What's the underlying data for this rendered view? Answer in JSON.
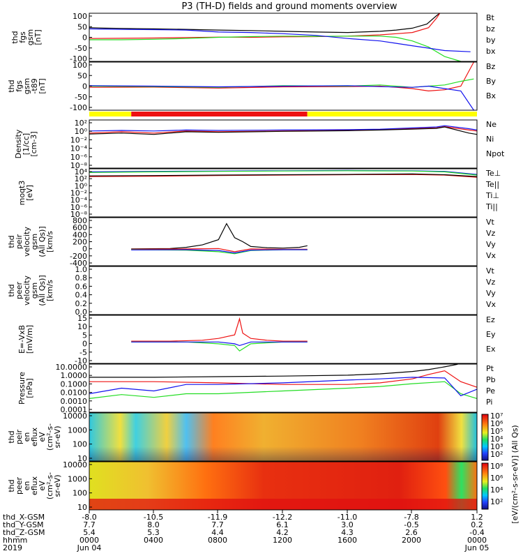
{
  "title": "P3 (TH-D) fields and ground moments overview",
  "colors": {
    "black": "#000000",
    "red": "#ee1111",
    "green": "#22dd22",
    "blue": "#1111ee",
    "yellow": "#ffff00"
  },
  "panels": [
    {
      "id": "p1",
      "label": [
        "thd",
        "fgs",
        "gsm",
        "[nT]"
      ],
      "ticks": [
        "100",
        "50",
        "0",
        "-50",
        "-100"
      ],
      "legend": [
        {
          "text": "Bt",
          "color": "black"
        },
        {
          "text": "bz",
          "color": "red"
        },
        {
          "text": "by",
          "color": "green"
        },
        {
          "text": "bx",
          "color": "blue"
        }
      ]
    },
    {
      "id": "p2",
      "label": [
        "thd",
        "fgs",
        "gsm",
        "-t89",
        "[nT]"
      ],
      "ticks": [
        "100",
        "50",
        "0",
        "-50",
        "-100"
      ],
      "legend": [
        {
          "text": "Bz",
          "color": "red"
        },
        {
          "text": "By",
          "color": "green"
        },
        {
          "text": "Bx",
          "color": "blue"
        }
      ]
    },
    {
      "id": "p3",
      "label": [
        "Density",
        "[1/cc]",
        "[cm-3]"
      ],
      "ticks": [
        "10²",
        "10⁰",
        "10⁻²",
        "10⁻⁴",
        "10⁻⁶",
        "10⁻⁸"
      ],
      "legend": [
        {
          "text": "Ne",
          "color": "red"
        },
        {
          "text": "Ni",
          "color": "black"
        },
        {
          "text": "Npot",
          "color": "blue"
        }
      ]
    },
    {
      "id": "p4",
      "label": [
        "moqt3",
        "[eV]"
      ],
      "ticks": [
        "10⁴",
        "10²",
        "10⁰",
        "10⁻²",
        "10⁻⁴",
        "10⁻⁶",
        "10⁻⁸"
      ],
      "legend": [
        {
          "text": "Te⊥",
          "color": "red"
        },
        {
          "text": "Te||",
          "color": "black"
        },
        {
          "text": "Ti⊥",
          "color": "blue"
        },
        {
          "text": "Ti||",
          "color": "green"
        }
      ]
    },
    {
      "id": "p5",
      "label": [
        "thd",
        "peir",
        "velocity",
        "gsm",
        "(All Qs)]",
        "[km/s"
      ],
      "ticks": [
        "800",
        "600",
        "400",
        "200",
        "0",
        "-200",
        "-400"
      ],
      "legend": [
        {
          "text": "Vt",
          "color": "black"
        },
        {
          "text": "Vz",
          "color": "red"
        },
        {
          "text": "Vy",
          "color": "green"
        },
        {
          "text": "Vx",
          "color": "blue"
        }
      ]
    },
    {
      "id": "p6",
      "label": [
        "thd",
        "peer",
        "velocity",
        "gsm",
        "(All Qs)]",
        "[km/s"
      ],
      "ticks": [
        "1.0",
        "0.8",
        "0.6",
        "0.4",
        "0.2",
        "0.0"
      ],
      "legend": [
        {
          "text": "Vt",
          "color": "black"
        },
        {
          "text": "Vz",
          "color": "red"
        },
        {
          "text": "Vy",
          "color": "green"
        },
        {
          "text": "Vx",
          "color": "blue"
        }
      ]
    },
    {
      "id": "p7",
      "label": [
        "E=-VxB",
        "[mV/m]"
      ],
      "ticks": [
        "15",
        "10",
        "5",
        "0",
        "-5",
        "-10"
      ],
      "legend": [
        {
          "text": "Ez",
          "color": "red"
        },
        {
          "text": "Ey",
          "color": "green"
        },
        {
          "text": "Ex",
          "color": "blue"
        }
      ]
    },
    {
      "id": "p8",
      "label": [
        "Pressure",
        "[nPa]"
      ],
      "ticks": [
        "10.0000",
        "1.0000",
        "0.1000",
        "0.0100",
        "0.0010",
        "0.0001"
      ],
      "legend": [
        {
          "text": "Pt",
          "color": "black"
        },
        {
          "text": "Pb",
          "color": "red"
        },
        {
          "text": "Pe",
          "color": "green"
        },
        {
          "text": "Pi",
          "color": "blue"
        }
      ]
    },
    {
      "id": "p9",
      "label": [
        "thd",
        "peir",
        "en",
        "eflux",
        "eV",
        "(cm²-s-",
        "sr-eV)"
      ],
      "ticks": [
        "10000",
        "1000",
        "100",
        "10"
      ]
    },
    {
      "id": "p10",
      "label": [
        "thd",
        "peer",
        "en",
        "eflux",
        "eV",
        "(cm²-s-",
        "sr-eV)"
      ],
      "ticks": [
        "10000",
        "1000",
        "100",
        "10"
      ]
    }
  ],
  "spectro_colorbar": {
    "label": "[eV/(cm²-s-sr-eV)] (All Qs)",
    "ticks_top": [
      "10⁷",
      "10⁶",
      "10⁵",
      "10⁴",
      "10³",
      "10²"
    ],
    "ticks_bottom": [
      "10⁸",
      "10⁶",
      "10⁴",
      "10²"
    ]
  },
  "chart_data": {
    "type": "line",
    "title": "P3 (TH-D) fields and ground moments overview",
    "x_axis_rows": [
      {
        "label": "thd_X-GSM",
        "values": [
          "-8.0",
          "-10.5",
          "-11.9",
          "-12.2",
          "-11.0",
          "-7.8",
          "1.2"
        ]
      },
      {
        "label": "thd_Y-GSM",
        "values": [
          "7.7",
          "8.0",
          "7.7",
          "6.1",
          "3.0",
          "-0.5",
          "0.2"
        ]
      },
      {
        "label": "thd_Z-GSM",
        "values": [
          "5.4",
          "5.3",
          "4.4",
          "4.2",
          "4.3",
          "2.6",
          "-0.4"
        ]
      },
      {
        "label": "hhmm",
        "values": [
          "0000",
          "0400",
          "0800",
          "1200",
          "1600",
          "2000",
          "0000"
        ]
      },
      {
        "label": "2019",
        "values": [
          "Jun 04",
          "",
          "",
          "",
          "",
          "",
          "Jun 05"
        ]
      }
    ],
    "time_range_hours": [
      0,
      24
    ],
    "series": [
      {
        "panel": "p1",
        "name": "Bt",
        "x": [
          0,
          1,
          2,
          3,
          4,
          6,
          8,
          10,
          12,
          14,
          16,
          18,
          19,
          20,
          20.9,
          21.5,
          21.7
        ],
        "y": [
          40,
          38,
          37,
          36,
          35,
          33,
          30,
          28,
          25,
          22,
          20,
          25,
          30,
          38,
          55,
          90,
          100
        ]
      },
      {
        "panel": "p1",
        "name": "bz",
        "x": [
          0,
          2,
          4,
          6,
          8,
          10,
          12,
          14,
          16,
          18,
          19,
          20,
          21,
          21.5,
          21.7
        ],
        "y": [
          -5,
          -4,
          -3,
          -1,
          1,
          0,
          2,
          3,
          5,
          10,
          15,
          20,
          40,
          80,
          100
        ]
      },
      {
        "panel": "p1",
        "name": "by",
        "x": [
          0,
          2,
          4,
          6,
          8,
          10,
          12,
          14,
          16,
          18,
          19,
          20,
          21,
          22,
          23
        ],
        "y": [
          -10,
          -10,
          -8,
          -5,
          0,
          3,
          5,
          4,
          5,
          5,
          0,
          -15,
          -40,
          -80,
          -100
        ]
      },
      {
        "panel": "p1",
        "name": "bx",
        "x": [
          0,
          2,
          4,
          6,
          8,
          10,
          12,
          14,
          16,
          18,
          19,
          20,
          21,
          22,
          23.6
        ],
        "y": [
          35,
          33,
          32,
          30,
          22,
          20,
          15,
          8,
          -5,
          -15,
          -25,
          -35,
          -45,
          -55,
          -60
        ]
      },
      {
        "panel": "p2",
        "name": "Bz",
        "x": [
          0,
          4,
          8,
          12,
          16,
          18,
          19,
          20,
          21,
          22,
          23,
          23.8
        ],
        "y": [
          -5,
          -4,
          -8,
          -3,
          -2,
          0,
          -5,
          -10,
          -20,
          -15,
          0,
          100
        ]
      },
      {
        "panel": "p2",
        "name": "By",
        "x": [
          0,
          4,
          8,
          12,
          16,
          18,
          20,
          21,
          22,
          23,
          23.8
        ],
        "y": [
          0,
          -2,
          -5,
          2,
          0,
          5,
          -5,
          0,
          5,
          20,
          30
        ]
      },
      {
        "panel": "p2",
        "name": "Bx",
        "x": [
          0,
          4,
          8,
          12,
          16,
          18,
          20,
          21,
          22,
          23,
          23.8
        ],
        "y": [
          2,
          0,
          -3,
          0,
          2,
          -2,
          -5,
          0,
          -10,
          -20,
          -100
        ]
      },
      {
        "panel": "p3",
        "name": "Ne",
        "x": [
          0,
          2,
          4,
          6,
          8,
          12,
          16,
          18,
          20,
          21.5,
          22,
          23.5,
          24
        ],
        "y": [
          0.1,
          0.2,
          0.1,
          0.3,
          0.2,
          0.3,
          0.4,
          0.6,
          1.0,
          1.5,
          3.0,
          0.5,
          0.3
        ]
      },
      {
        "panel": "p3",
        "name": "Ni",
        "x": [
          0,
          2,
          4,
          6,
          8,
          12,
          16,
          18,
          20,
          21.5,
          22,
          23.5,
          24
        ],
        "y": [
          0.06,
          0.1,
          0.05,
          0.2,
          0.15,
          0.25,
          0.35,
          0.5,
          0.8,
          1.2,
          2.5,
          0.1,
          0.05
        ]
      },
      {
        "panel": "p3",
        "name": "Npot",
        "x": [
          0,
          2,
          4,
          6,
          8,
          12,
          16,
          18,
          20,
          21.5,
          22,
          23.5,
          24
        ],
        "y": [
          0.3,
          0.4,
          0.3,
          0.5,
          0.4,
          0.5,
          0.6,
          0.8,
          1.5,
          2.5,
          5.0,
          1.0,
          0.5
        ]
      },
      {
        "panel": "p4",
        "name": "Te⊥",
        "x": [
          0,
          4,
          8,
          12,
          16,
          20,
          22,
          24
        ],
        "y": [
          80,
          100,
          150,
          200,
          250,
          300,
          200,
          50
        ]
      },
      {
        "panel": "p4",
        "name": "Te||",
        "x": [
          0,
          4,
          8,
          12,
          16,
          20,
          22,
          24
        ],
        "y": [
          120,
          150,
          200,
          250,
          300,
          400,
          250,
          80
        ]
      },
      {
        "panel": "p4",
        "name": "Ti⊥",
        "x": [
          0,
          4,
          8,
          12,
          16,
          20,
          22,
          24
        ],
        "y": [
          1500,
          2000,
          2500,
          3000,
          3500,
          3000,
          2000,
          300
        ]
      },
      {
        "panel": "p4",
        "name": "Ti||",
        "x": [
          0,
          4,
          8,
          12,
          16,
          20,
          22,
          24
        ],
        "y": [
          1000,
          1500,
          2000,
          2500,
          3000,
          2500,
          1500,
          200
        ]
      },
      {
        "panel": "p5",
        "name": "Vt",
        "x": [
          2.6,
          5,
          6,
          7,
          8,
          8.5,
          9,
          9.5,
          10,
          11,
          12,
          13,
          13.5
        ],
        "y": [
          20,
          30,
          60,
          120,
          250,
          650,
          300,
          200,
          80,
          50,
          40,
          60,
          100
        ]
      },
      {
        "panel": "p5",
        "name": "Vz",
        "x": [
          2.6,
          6,
          8,
          9,
          10,
          12,
          13.5
        ],
        "y": [
          10,
          20,
          30,
          -50,
          20,
          10,
          10
        ]
      },
      {
        "panel": "p5",
        "name": "Vy",
        "x": [
          2.6,
          6,
          8,
          9,
          10,
          12,
          13.5
        ],
        "y": [
          0,
          -10,
          -50,
          -100,
          -20,
          0,
          0
        ]
      },
      {
        "panel": "p5",
        "name": "Vx",
        "x": [
          2.6,
          6,
          8,
          9,
          10,
          12,
          13.5
        ],
        "y": [
          -5,
          0,
          -20,
          -80,
          -10,
          0,
          0
        ]
      },
      {
        "panel": "p7",
        "name": "Ez",
        "x": [
          2.6,
          5,
          7,
          8,
          9,
          9.3,
          9.5,
          10,
          11,
          12,
          13.5
        ],
        "y": [
          0.5,
          0.5,
          1,
          2,
          4,
          13,
          5,
          2,
          1,
          0.5,
          0.5
        ]
      },
      {
        "panel": "p7",
        "name": "Ey",
        "x": [
          2.6,
          6,
          8,
          9,
          9.3,
          10,
          12,
          13.5
        ],
        "y": [
          0,
          0,
          -1,
          -2,
          -5,
          -1,
          0,
          0
        ]
      },
      {
        "panel": "p7",
        "name": "Ex",
        "x": [
          2.6,
          6,
          8,
          9,
          9.3,
          10,
          12,
          13.5
        ],
        "y": [
          0,
          0,
          0,
          -1,
          -2,
          0,
          0,
          0
        ]
      },
      {
        "panel": "p8",
        "name": "Pt",
        "x": [
          0,
          4,
          8,
          12,
          16,
          18,
          20,
          21,
          22,
          22.8
        ],
        "y": [
          0.6,
          0.6,
          0.7,
          0.8,
          1.0,
          1.4,
          2.5,
          4,
          8,
          15
        ]
      },
      {
        "panel": "p8",
        "name": "Pb",
        "x": [
          0,
          4,
          8,
          12,
          16,
          18,
          20,
          21,
          22,
          23,
          24
        ],
        "y": [
          0.2,
          0.2,
          0.15,
          0.1,
          0.1,
          0.15,
          0.4,
          1.2,
          3,
          0.2,
          0.05
        ]
      },
      {
        "panel": "p8",
        "name": "Pe",
        "x": [
          0,
          2,
          4,
          6,
          8,
          12,
          16,
          18,
          20,
          22,
          23,
          24
        ],
        "y": [
          0.003,
          0.008,
          0.004,
          0.01,
          0.01,
          0.02,
          0.04,
          0.06,
          0.12,
          0.2,
          0.01,
          0.003
        ]
      },
      {
        "panel": "p8",
        "name": "Pi",
        "x": [
          0,
          2,
          4,
          6,
          8,
          12,
          16,
          18,
          20,
          22,
          23,
          24
        ],
        "y": [
          0.01,
          0.04,
          0.02,
          0.1,
          0.1,
          0.15,
          0.3,
          0.4,
          0.6,
          0.5,
          0.006,
          0.03
        ]
      }
    ],
    "status_bar": [
      {
        "from": 0,
        "to": 2.6,
        "color": "yellow"
      },
      {
        "from": 2.6,
        "to": 13.5,
        "color": "red"
      },
      {
        "from": 13.5,
        "to": 24,
        "color": "yellow"
      }
    ]
  }
}
